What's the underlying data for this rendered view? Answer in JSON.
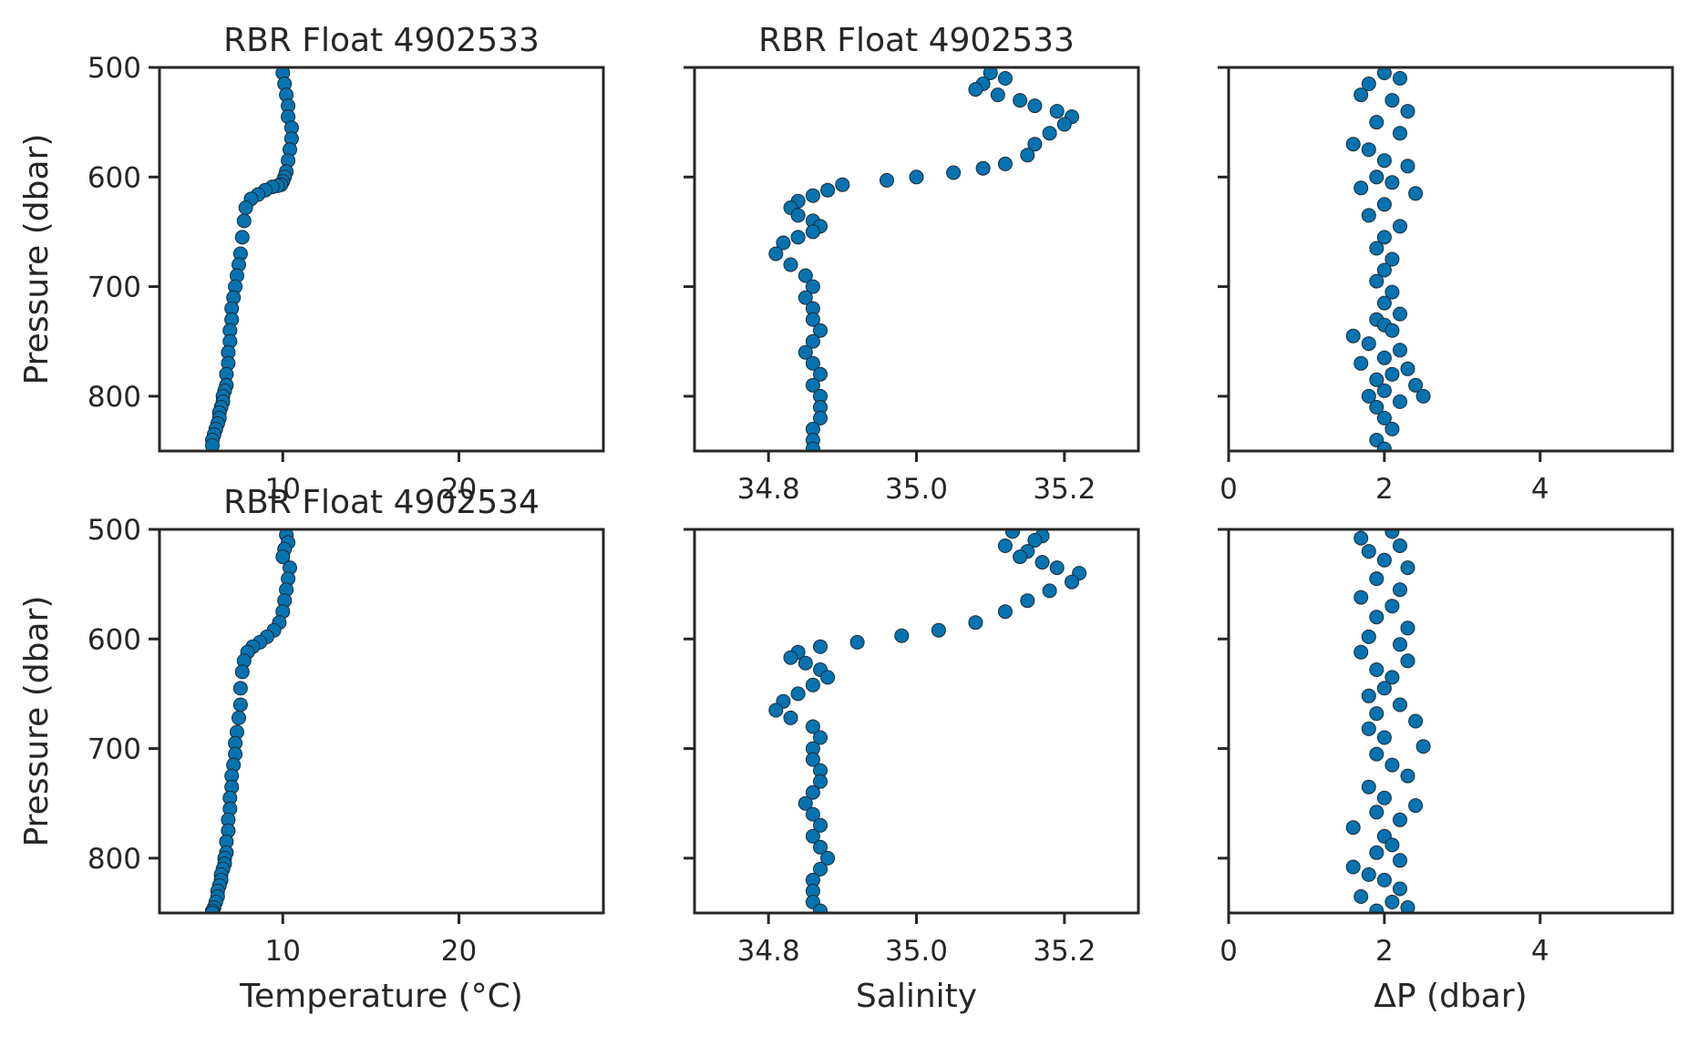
{
  "colors": {
    "marker_fill": "#0673b0",
    "marker_edge": "#1b2a36",
    "axis": "#262626",
    "background": "#ffffff"
  },
  "chart_data": [
    {
      "type": "scatter",
      "title": "RBR Float 4902533",
      "xlabel": "",
      "ylabel": "Pressure (dbar)",
      "xlim": [
        3.0,
        28.2
      ],
      "ylim": [
        850,
        500
      ],
      "y_inverted": true,
      "xticks": [
        10,
        20
      ],
      "yticks": [
        500,
        600,
        700,
        800
      ],
      "series": [
        {
          "x": [
            10.0,
            10.1,
            10.2,
            10.3,
            10.3,
            10.5,
            10.5,
            10.4,
            10.3,
            10.2,
            10.1,
            10.0,
            9.9,
            9.7,
            9.4,
            9.0,
            8.6,
            8.2,
            7.9,
            7.8,
            7.7,
            7.6,
            7.5,
            7.4,
            7.3,
            7.2,
            7.1,
            7.1,
            7.0,
            7.0,
            6.9,
            6.9,
            6.8,
            6.8,
            6.7,
            6.6,
            6.6,
            6.5,
            6.4,
            6.4,
            6.3,
            6.2,
            6.1,
            6.0,
            6.0
          ],
          "y": [
            505,
            515,
            525,
            535,
            545,
            555,
            565,
            575,
            585,
            595,
            600,
            604,
            607,
            608,
            609,
            612,
            616,
            620,
            628,
            640,
            655,
            670,
            680,
            690,
            700,
            710,
            720,
            730,
            740,
            750,
            760,
            770,
            780,
            790,
            795,
            800,
            805,
            810,
            815,
            820,
            825,
            830,
            835,
            840,
            845
          ]
        }
      ]
    },
    {
      "type": "scatter",
      "title": "RBR Float 4902533",
      "xlabel": "",
      "ylabel": "",
      "xlim": [
        34.7,
        35.3
      ],
      "ylim": [
        850,
        500
      ],
      "y_inverted": true,
      "xticks": [
        34.8,
        35.0,
        35.2
      ],
      "xtick_labels": [
        "34.8",
        "35.0",
        "35.2"
      ],
      "series": [
        {
          "x": [
            35.1,
            35.12,
            35.09,
            35.08,
            35.11,
            35.14,
            35.16,
            35.19,
            35.21,
            35.2,
            35.18,
            35.16,
            35.15,
            35.12,
            35.09,
            35.05,
            35.0,
            34.96,
            34.9,
            34.88,
            34.86,
            34.84,
            34.83,
            34.84,
            34.86,
            34.87,
            34.86,
            34.84,
            34.82,
            34.81,
            34.83,
            34.85,
            34.86,
            34.85,
            34.86,
            34.86,
            34.87,
            34.86,
            34.85,
            34.86,
            34.87,
            34.86,
            34.87,
            34.87,
            34.87,
            34.86,
            34.86,
            34.86
          ],
          "y": [
            505,
            510,
            515,
            520,
            525,
            530,
            535,
            540,
            545,
            552,
            560,
            570,
            580,
            588,
            592,
            596,
            600,
            603,
            607,
            612,
            617,
            622,
            628,
            635,
            640,
            645,
            650,
            655,
            660,
            670,
            680,
            690,
            700,
            710,
            720,
            730,
            740,
            750,
            760,
            770,
            780,
            790,
            800,
            810,
            820,
            830,
            840,
            848
          ]
        }
      ]
    },
    {
      "type": "scatter",
      "title": "",
      "xlabel": "",
      "ylabel": "",
      "xlim": [
        0,
        5.7
      ],
      "ylim": [
        850,
        500
      ],
      "y_inverted": true,
      "xticks": [
        0,
        2,
        4
      ],
      "series": [
        {
          "x": [
            2.0,
            2.2,
            1.8,
            1.7,
            2.1,
            2.3,
            1.9,
            2.2,
            1.6,
            1.8,
            2.0,
            2.3,
            1.9,
            2.1,
            1.7,
            2.4,
            2.0,
            1.8,
            2.2,
            2.0,
            1.9,
            2.1,
            2.0,
            1.9,
            2.1,
            2.0,
            2.2,
            1.9,
            2.0,
            2.1,
            1.6,
            1.8,
            2.2,
            2.0,
            1.7,
            2.3,
            2.1,
            1.9,
            2.4,
            2.0,
            1.8,
            2.2,
            2.5,
            1.9,
            2.0,
            2.1,
            1.9,
            2.0
          ],
          "y": [
            505,
            510,
            515,
            525,
            530,
            540,
            550,
            560,
            570,
            575,
            585,
            590,
            600,
            605,
            610,
            615,
            625,
            635,
            645,
            655,
            665,
            675,
            685,
            695,
            705,
            715,
            725,
            730,
            735,
            740,
            745,
            752,
            758,
            765,
            770,
            775,
            780,
            785,
            790,
            795,
            800,
            805,
            800,
            810,
            820,
            830,
            840,
            848
          ]
        }
      ]
    },
    {
      "type": "scatter",
      "title": "RBR Float 4902534",
      "xlabel": "Temperature (°C)",
      "ylabel": "Pressure (dbar)",
      "xlim": [
        3.0,
        28.2
      ],
      "ylim": [
        850,
        500
      ],
      "y_inverted": true,
      "xticks": [
        10,
        20
      ],
      "yticks": [
        500,
        600,
        700,
        800
      ],
      "series": [
        {
          "x": [
            10.2,
            10.3,
            10.1,
            10.0,
            10.4,
            10.3,
            10.2,
            10.1,
            10.0,
            9.8,
            9.5,
            9.1,
            8.7,
            8.3,
            8.0,
            7.8,
            7.7,
            7.6,
            7.6,
            7.5,
            7.4,
            7.3,
            7.3,
            7.2,
            7.1,
            7.1,
            7.0,
            7.0,
            6.9,
            6.9,
            6.8,
            6.8,
            6.7,
            6.7,
            6.6,
            6.5,
            6.5,
            6.4,
            6.3,
            6.3,
            6.2,
            6.1,
            6.0,
            6.0
          ],
          "y": [
            505,
            512,
            518,
            525,
            535,
            545,
            555,
            565,
            575,
            585,
            592,
            598,
            603,
            607,
            612,
            620,
            630,
            645,
            660,
            672,
            685,
            695,
            705,
            715,
            725,
            735,
            745,
            755,
            765,
            775,
            785,
            795,
            800,
            805,
            810,
            815,
            820,
            825,
            830,
            835,
            840,
            845,
            848,
            850
          ]
        }
      ]
    },
    {
      "type": "scatter",
      "title": "",
      "xlabel": "Salinity",
      "ylabel": "",
      "xlim": [
        34.7,
        35.3
      ],
      "ylim": [
        850,
        500
      ],
      "y_inverted": true,
      "xticks": [
        34.8,
        35.0,
        35.2
      ],
      "xtick_labels": [
        "34.8",
        "35.0",
        "35.2"
      ],
      "series": [
        {
          "x": [
            35.13,
            35.17,
            35.16,
            35.12,
            35.15,
            35.14,
            35.17,
            35.19,
            35.22,
            35.21,
            35.18,
            35.15,
            35.12,
            35.08,
            35.03,
            34.98,
            34.92,
            34.87,
            34.84,
            34.83,
            34.85,
            34.87,
            34.88,
            34.86,
            34.84,
            34.82,
            34.81,
            34.83,
            34.86,
            34.87,
            34.86,
            34.86,
            34.87,
            34.87,
            34.86,
            34.85,
            34.86,
            34.87,
            34.86,
            34.87,
            34.88,
            34.87,
            34.86,
            34.86,
            34.86,
            34.87
          ],
          "y": [
            502,
            506,
            510,
            515,
            520,
            525,
            530,
            535,
            540,
            548,
            556,
            565,
            575,
            585,
            592,
            597,
            603,
            607,
            612,
            617,
            622,
            628,
            635,
            642,
            650,
            657,
            665,
            672,
            680,
            690,
            700,
            710,
            720,
            730,
            740,
            750,
            760,
            770,
            780,
            790,
            800,
            810,
            820,
            830,
            840,
            848
          ]
        }
      ]
    },
    {
      "type": "scatter",
      "title": "",
      "xlabel": "ΔP (dbar)",
      "ylabel": "",
      "xlim": [
        0,
        5.7
      ],
      "ylim": [
        850,
        500
      ],
      "y_inverted": true,
      "xticks": [
        0,
        2,
        4
      ],
      "series": [
        {
          "x": [
            2.1,
            1.7,
            2.2,
            1.8,
            2.0,
            2.3,
            1.9,
            2.2,
            1.7,
            2.1,
            1.9,
            2.3,
            1.8,
            2.2,
            1.7,
            2.3,
            1.9,
            2.1,
            2.0,
            1.8,
            2.2,
            1.9,
            2.4,
            1.8,
            2.0,
            2.5,
            1.9,
            2.1,
            2.3,
            1.8,
            2.0,
            2.4,
            1.9,
            2.2,
            1.6,
            2.0,
            2.1,
            1.9,
            2.2,
            1.6,
            1.8,
            2.0,
            2.2,
            1.7,
            2.1,
            2.3,
            1.9
          ],
          "y": [
            502,
            508,
            515,
            520,
            528,
            535,
            545,
            555,
            562,
            570,
            580,
            590,
            598,
            605,
            612,
            620,
            628,
            635,
            645,
            652,
            660,
            668,
            675,
            682,
            690,
            698,
            705,
            715,
            725,
            735,
            745,
            752,
            758,
            765,
            772,
            780,
            788,
            795,
            802,
            808,
            815,
            820,
            828,
            835,
            840,
            845,
            848
          ]
        }
      ]
    }
  ]
}
